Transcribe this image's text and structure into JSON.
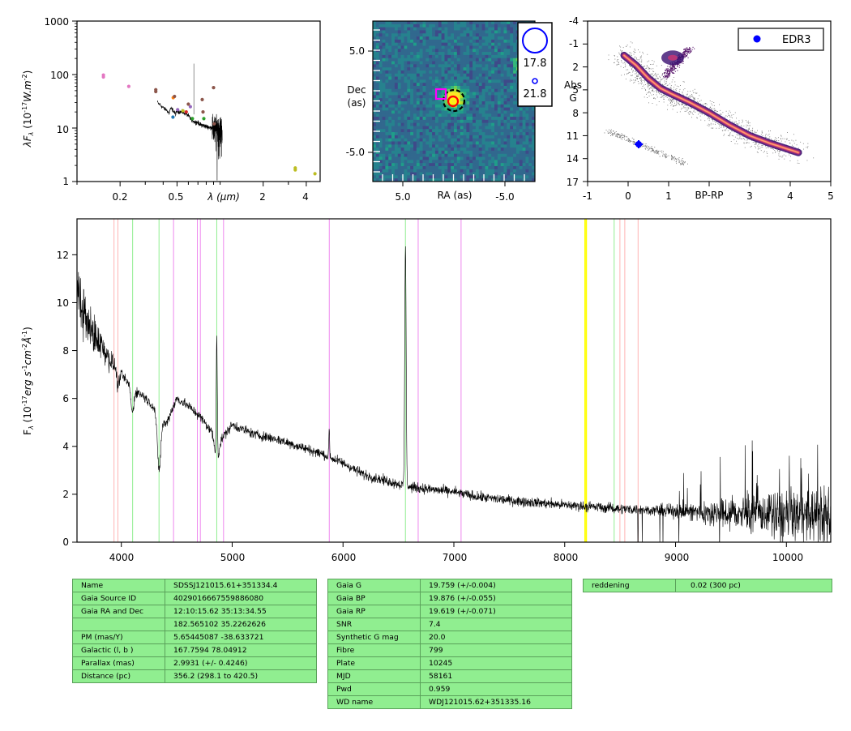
{
  "sed": {
    "ylabel": "λF_λ (10^-17 W.m^-2)",
    "ylabel_pre": "λF",
    "ylabel_sub": "λ",
    "ylabel_mid": " (10",
    "ylabel_exp": "-17",
    "ylabel_post": "W.m",
    "ylabel_exp2": "-2",
    "ylabel_end": ")",
    "xlabel": "λ (μm)",
    "yticks": [
      "1",
      "10",
      "100",
      "1000"
    ],
    "xticks": [
      "0.2",
      "0.5",
      "2",
      "4"
    ]
  },
  "image": {
    "xlabel": "RA (as)",
    "ylabel_line1": "Dec",
    "ylabel_line2": "(as)",
    "yticks": [
      "5.0",
      "-5.0"
    ],
    "xticks": [
      "5.0",
      "-5.0"
    ],
    "legend_mags": [
      "17.8",
      "21.8"
    ]
  },
  "hr": {
    "xlabel": "BP-RP",
    "ylabel_line1": "Abs",
    "ylabel_line2": "G",
    "yticks": [
      "-4",
      "-1",
      "2",
      "5",
      "8",
      "11",
      "14",
      "17"
    ],
    "xticks": [
      "-1",
      "0",
      "1",
      "3",
      "4",
      "5"
    ],
    "legend": "EDR3",
    "star_color": "#0000ff"
  },
  "spectrum": {
    "ylabel": "F_λ (10^-17 erg s^-1 cm^-2 Å^-1)",
    "ylabel_pre": "F",
    "ylabel_sub": "λ",
    "ylabel_mid": " (10",
    "ylabel_exp": "-17",
    "ylabel_post": "erg s",
    "ylabel_exp2": "-1",
    "ylabel_cm": "cm",
    "ylabel_exp3": "-2",
    "ylabel_ang": "Å",
    "ylabel_exp4": "-1",
    "ylabel_end": ")",
    "yticks": [
      "0",
      "2",
      "4",
      "6",
      "8",
      "10",
      "12"
    ],
    "xticks": [
      "4000",
      "5000",
      "6000",
      "7000",
      "8000",
      "9000",
      "10000"
    ]
  },
  "chart_data": [
    {
      "type": "scatter",
      "panel": "SED",
      "xscale": "log",
      "yscale": "log",
      "xlim": [
        0.1,
        5.0
      ],
      "ylim": [
        1,
        1000
      ],
      "points": [
        {
          "x": 0.153,
          "y": 98,
          "color": "#e377c2"
        },
        {
          "x": 0.153,
          "y": 90,
          "color": "#e377c2"
        },
        {
          "x": 0.23,
          "y": 60,
          "color": "#e377c2"
        },
        {
          "x": 0.355,
          "y": 52,
          "color": "#8c564b"
        },
        {
          "x": 0.355,
          "y": 48,
          "color": "#8c564b"
        },
        {
          "x": 0.468,
          "y": 16,
          "color": "#1f77b4"
        },
        {
          "x": 0.47,
          "y": 37,
          "color": "#ff7f0e"
        },
        {
          "x": 0.48,
          "y": 39,
          "color": "#8c564b"
        },
        {
          "x": 0.505,
          "y": 22,
          "color": "#9467bd"
        },
        {
          "x": 0.55,
          "y": 21,
          "color": "#bcbd22"
        },
        {
          "x": 0.58,
          "y": 20,
          "color": "#d62728"
        },
        {
          "x": 0.6,
          "y": 28,
          "color": "#8c564b"
        },
        {
          "x": 0.62,
          "y": 25,
          "color": "#9467bd"
        },
        {
          "x": 0.64,
          "y": 15,
          "color": "#2ca02c"
        },
        {
          "x": 0.75,
          "y": 34,
          "color": "#8c564b"
        },
        {
          "x": 0.76,
          "y": 20,
          "color": "#8c564b"
        },
        {
          "x": 0.77,
          "y": 15,
          "color": "#2ca02c"
        },
        {
          "x": 0.9,
          "y": 57,
          "color": "#8c564b"
        },
        {
          "x": 0.91,
          "y": 12,
          "color": "#8c564b"
        },
        {
          "x": 3.35,
          "y": 1.8,
          "color": "#bcbd22"
        },
        {
          "x": 3.35,
          "y": 1.65,
          "color": "#bcbd22"
        },
        {
          "x": 4.6,
          "y": 1.4,
          "color": "#bcbd22"
        }
      ]
    },
    {
      "type": "heatmap",
      "panel": "image cutout",
      "xlim": [
        9.5,
        -9.5
      ],
      "ylim": [
        -9.5,
        9.5
      ],
      "source": {
        "ra": -0.2,
        "dec": 0.2
      },
      "marker_square": {
        "ra": 1.2,
        "dec": 0.7,
        "color": "#ff00ff"
      },
      "marker_circle": {
        "ra": 0.2,
        "dec": 0.0,
        "color": "#ff0000"
      },
      "legend_circles": [
        {
          "mag": 17.8,
          "color": "#0000ff"
        },
        {
          "mag": 21.8,
          "color": "#0000ff"
        }
      ]
    },
    {
      "type": "scatter",
      "panel": "HR diagram",
      "xlim": [
        -1,
        5
      ],
      "ylim": [
        17,
        -4
      ],
      "star": {
        "x": 0.27,
        "y": 11.9,
        "series": "EDR3"
      },
      "background": "Gaia colour–magnitude density"
    },
    {
      "type": "line",
      "panel": "spectrum",
      "xlim": [
        3600,
        10400
      ],
      "ylim": [
        0,
        13.5
      ],
      "continuum": [
        [
          3600,
          10.5
        ],
        [
          3700,
          9.0
        ],
        [
          3800,
          8.4
        ],
        [
          3900,
          7.6
        ],
        [
          4000,
          7.0
        ],
        [
          4100,
          6.4
        ],
        [
          4200,
          6.1
        ],
        [
          4300,
          5.6
        ],
        [
          4400,
          4.9
        ],
        [
          4500,
          6.0
        ],
        [
          4600,
          5.7
        ],
        [
          4700,
          5.3
        ],
        [
          4800,
          4.7
        ],
        [
          4900,
          4.3
        ],
        [
          5000,
          4.9
        ],
        [
          5200,
          4.5
        ],
        [
          5400,
          4.3
        ],
        [
          5600,
          4.0
        ],
        [
          5800,
          3.7
        ],
        [
          6000,
          3.3
        ],
        [
          6200,
          2.8
        ],
        [
          6400,
          2.55
        ],
        [
          6600,
          2.3
        ],
        [
          6800,
          2.2
        ],
        [
          7000,
          2.1
        ],
        [
          7200,
          1.9
        ],
        [
          7500,
          1.75
        ],
        [
          8000,
          1.55
        ],
        [
          8500,
          1.4
        ],
        [
          9000,
          1.3
        ],
        [
          9500,
          1.2
        ],
        [
          10000,
          1.15
        ],
        [
          10400,
          1.1
        ]
      ],
      "absorption": [
        {
          "x": 4340,
          "depth": 2.3,
          "width": 22
        },
        {
          "x": 4861,
          "depth": 1.2,
          "width": 25
        },
        {
          "x": 4100,
          "depth": 1.0,
          "width": 18
        },
        {
          "x": 3970,
          "depth": 0.7,
          "width": 14
        }
      ],
      "emission": [
        {
          "x": 4861,
          "height": 5.4,
          "width": 7
        },
        {
          "x": 6563,
          "height": 10.0,
          "width": 9
        },
        {
          "x": 5876,
          "height": 1.2,
          "width": 5
        }
      ],
      "lines_pink": [
        3934,
        3969,
        8498,
        8542,
        8662
      ],
      "lines_green": [
        4102,
        4340,
        4861,
        6563,
        8446
      ],
      "lines_magenta": [
        4471,
        4686,
        4713,
        4922,
        5876,
        6678,
        7065
      ],
      "lines_yellow": [
        8183,
        8195
      ]
    }
  ],
  "tables": {
    "target": [
      [
        "Name",
        "SDSSJ121015.61+351334.4"
      ],
      [
        "Gaia Source ID",
        "4029016667559886080"
      ],
      [
        "Gaia RA and Dec",
        "12:10:15.62    35:13:34.55"
      ],
      [
        "",
        "182.565102    35.2262626"
      ],
      [
        "PM (mas/Y)",
        "5.65445087    -38.633721"
      ],
      [
        "Galactic (l, b )",
        "167.7594    78.04912"
      ],
      [
        "Parallax (mas)",
        "2.9931 (+/- 0.4246)"
      ],
      [
        "Distance (pc)",
        "356.2 (298.1 to 420.5)"
      ]
    ],
    "photometry": [
      [
        "Gaia G",
        "19.759 (+/-0.004)"
      ],
      [
        "Gaia BP",
        "19.876 (+/-0.055)"
      ],
      [
        "Gaia RP",
        "19.619 (+/-0.071)"
      ],
      [
        "SNR",
        "7.4"
      ],
      [
        "Synthetic G mag",
        "20.0"
      ],
      [
        "Fibre",
        "799"
      ],
      [
        "Plate",
        "10245"
      ],
      [
        "MJD",
        "58161"
      ],
      [
        "Pwd",
        "0.959"
      ],
      [
        "WD name",
        "WDJ121015.62+351335.16"
      ]
    ],
    "reddening": [
      [
        "reddening",
        "0.02 (300 pc)"
      ]
    ]
  }
}
